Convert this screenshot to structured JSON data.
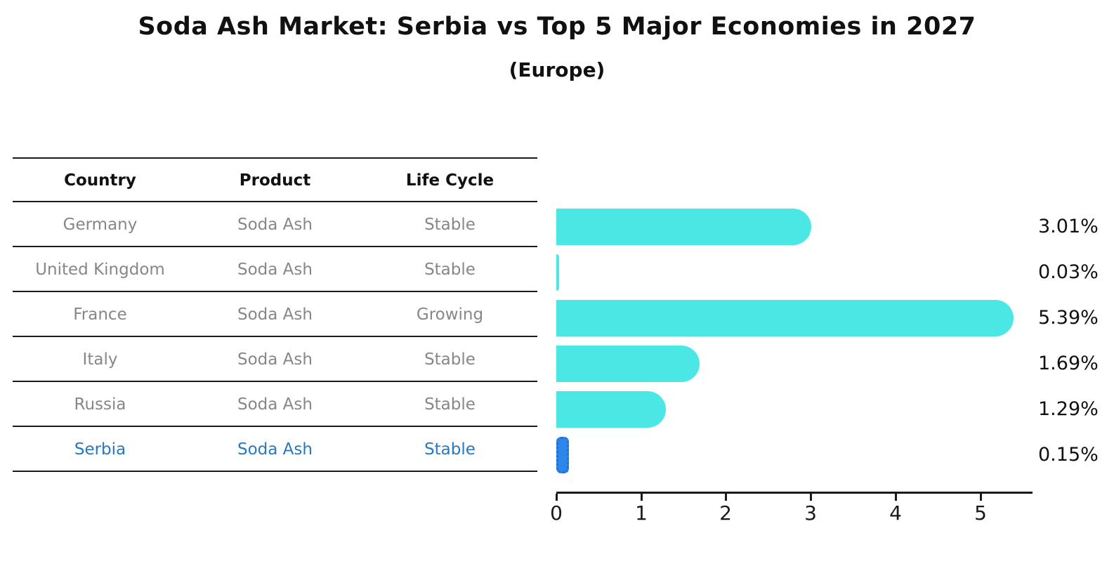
{
  "title": "Soda Ash Market: Serbia vs Top 5 Major Economies in 2027",
  "subtitle": "(Europe)",
  "table": {
    "headers": [
      "Country",
      "Product",
      "Life Cycle"
    ],
    "rows": [
      {
        "country": "Germany",
        "product": "Soda Ash",
        "life_cycle": "Stable",
        "highlight": false
      },
      {
        "country": "United Kingdom",
        "product": "Soda Ash",
        "life_cycle": "Stable",
        "highlight": false
      },
      {
        "country": "France",
        "product": "Soda Ash",
        "life_cycle": "Growing",
        "highlight": false
      },
      {
        "country": "Italy",
        "product": "Soda Ash",
        "life_cycle": "Stable",
        "highlight": false
      },
      {
        "country": "Russia",
        "product": "Soda Ash",
        "life_cycle": "Stable",
        "highlight": false
      },
      {
        "country": "Serbia",
        "product": "Soda Ash",
        "life_cycle": "Stable",
        "highlight": true
      }
    ]
  },
  "chart_data": {
    "type": "bar",
    "orientation": "horizontal",
    "categories": [
      "Germany",
      "United Kingdom",
      "France",
      "Italy",
      "Russia",
      "Serbia"
    ],
    "values": [
      3.01,
      0.03,
      5.39,
      1.69,
      1.29,
      0.15
    ],
    "value_labels": [
      "3.01%",
      "0.03%",
      "5.39%",
      "1.69%",
      "1.29%",
      "0.15%"
    ],
    "x_ticks": [
      "0",
      "1",
      "2",
      "3",
      "4",
      "5"
    ],
    "xlim": [
      0,
      5.6
    ],
    "grid": false,
    "legend": "none",
    "bar_color": "#4AE7E4",
    "highlight_color": "#2E86EA",
    "highlight_index": 5,
    "highlight_text_color": "#2779BE"
  }
}
